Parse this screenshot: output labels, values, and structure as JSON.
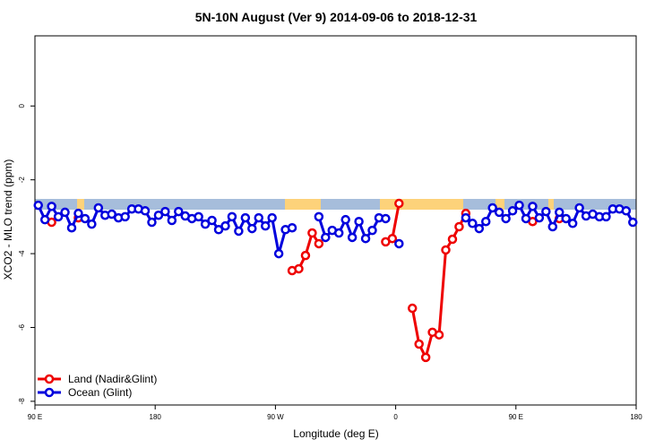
{
  "chart_data": {
    "type": "line",
    "title": "5N-10N August (Ver 9)   2014-09-06 to 2018-12-31",
    "xlabel": "Longitude (deg E)",
    "ylabel": "XCO2 - MLO trend (ppm)",
    "x": [
      92.5,
      97.5,
      102.5,
      107.5,
      112.5,
      117.5,
      122.5,
      127.5,
      132.5,
      137.5,
      142.5,
      147.5,
      152.5,
      157.5,
      162.5,
      167.5,
      172.5,
      177.5,
      182.5,
      187.5,
      192.5,
      197.5,
      202.5,
      207.5,
      212.5,
      217.5,
      222.5,
      227.5,
      232.5,
      237.5,
      242.5,
      247.5,
      252.5,
      257.5,
      262.5,
      267.5,
      272.5,
      277.5,
      282.5,
      287.5,
      292.5,
      297.5,
      302.5,
      307.5,
      312.5,
      317.5,
      322.5,
      327.5,
      332.5,
      337.5,
      342.5,
      347.5,
      352.5,
      357.5,
      362.5,
      367.5,
      372.5,
      377.5,
      382.5,
      387.5,
      392.5,
      397.5,
      402.5,
      407.5,
      412.5,
      417.5,
      422.5,
      427.5,
      432.5,
      437.5,
      442.5,
      447.5,
      452.5,
      457.5,
      462.5,
      467.5,
      472.5,
      477.5,
      482.5,
      487.5,
      492.5,
      497.5,
      502.5,
      507.5,
      512.5,
      517.5,
      522.5,
      527.5,
      532.5,
      537.5
    ],
    "series": [
      {
        "name": "Land (Nadir&Glint)",
        "color": "#ee0000",
        "values": [
          null,
          null,
          -3.15,
          null,
          null,
          null,
          -3.03,
          null,
          null,
          null,
          null,
          null,
          null,
          null,
          null,
          null,
          null,
          null,
          null,
          null,
          null,
          null,
          null,
          null,
          null,
          null,
          null,
          null,
          null,
          null,
          null,
          null,
          null,
          null,
          null,
          null,
          null,
          null,
          -4.46,
          -4.41,
          -4.05,
          -3.44,
          -3.73,
          null,
          null,
          null,
          null,
          null,
          null,
          null,
          null,
          null,
          -3.68,
          -3.59,
          -2.64,
          null,
          -5.48,
          -6.45,
          -6.81,
          -6.13,
          -6.2,
          -3.9,
          -3.61,
          -3.27,
          -2.91,
          null,
          null,
          null,
          null,
          null,
          null,
          null,
          null,
          null,
          -3.13,
          null,
          null,
          null,
          -3.05,
          null,
          null,
          null,
          null,
          null,
          null,
          null,
          null,
          null,
          null,
          null
        ]
      },
      {
        "name": "Ocean (Glint)",
        "color": "#0000dd",
        "values": [
          -2.69,
          -3.08,
          -2.72,
          -3.0,
          -2.88,
          -3.3,
          -2.91,
          -3.05,
          -3.2,
          -2.76,
          -2.96,
          -2.93,
          -3.03,
          -3.0,
          -2.79,
          -2.79,
          -2.84,
          -3.15,
          -2.96,
          -2.86,
          -3.1,
          -2.86,
          -2.98,
          -3.05,
          -3.0,
          -3.2,
          -3.1,
          -3.35,
          -3.25,
          -3.0,
          -3.39,
          -3.03,
          -3.32,
          -3.03,
          -3.25,
          -3.03,
          -4.0,
          -3.35,
          -3.3,
          null,
          null,
          null,
          -3.0,
          -3.56,
          -3.37,
          -3.44,
          -3.08,
          -3.56,
          -3.13,
          -3.59,
          -3.37,
          -3.03,
          -3.05,
          null,
          -3.73,
          null,
          null,
          null,
          null,
          null,
          null,
          null,
          null,
          null,
          -3.03,
          -3.18,
          -3.32,
          -3.13,
          -2.76,
          -2.88,
          -3.05,
          -2.84,
          -2.69,
          -3.05,
          -2.72,
          -3.03,
          -2.86,
          -3.27,
          -2.88,
          -3.05,
          -3.18,
          -2.76,
          -2.98,
          -2.93,
          -3.0,
          -3.0,
          -2.79,
          -2.79,
          -2.84,
          -3.15
        ]
      }
    ],
    "xlim": [
      90,
      540
    ],
    "xticks": [
      {
        "value": 90,
        "label": "90 E"
      },
      180,
      {
        "value": 270,
        "label": "90 W"
      },
      {
        "value": 360,
        "label": "0"
      },
      {
        "value": 450,
        "label": "90 E"
      },
      {
        "value": 540,
        "label": "180"
      }
    ],
    "ylim": [
      -8.1,
      1.9
    ],
    "yticks": [
      0,
      -2,
      -4,
      -6,
      -8
    ],
    "legend": "bottom-left"
  }
}
